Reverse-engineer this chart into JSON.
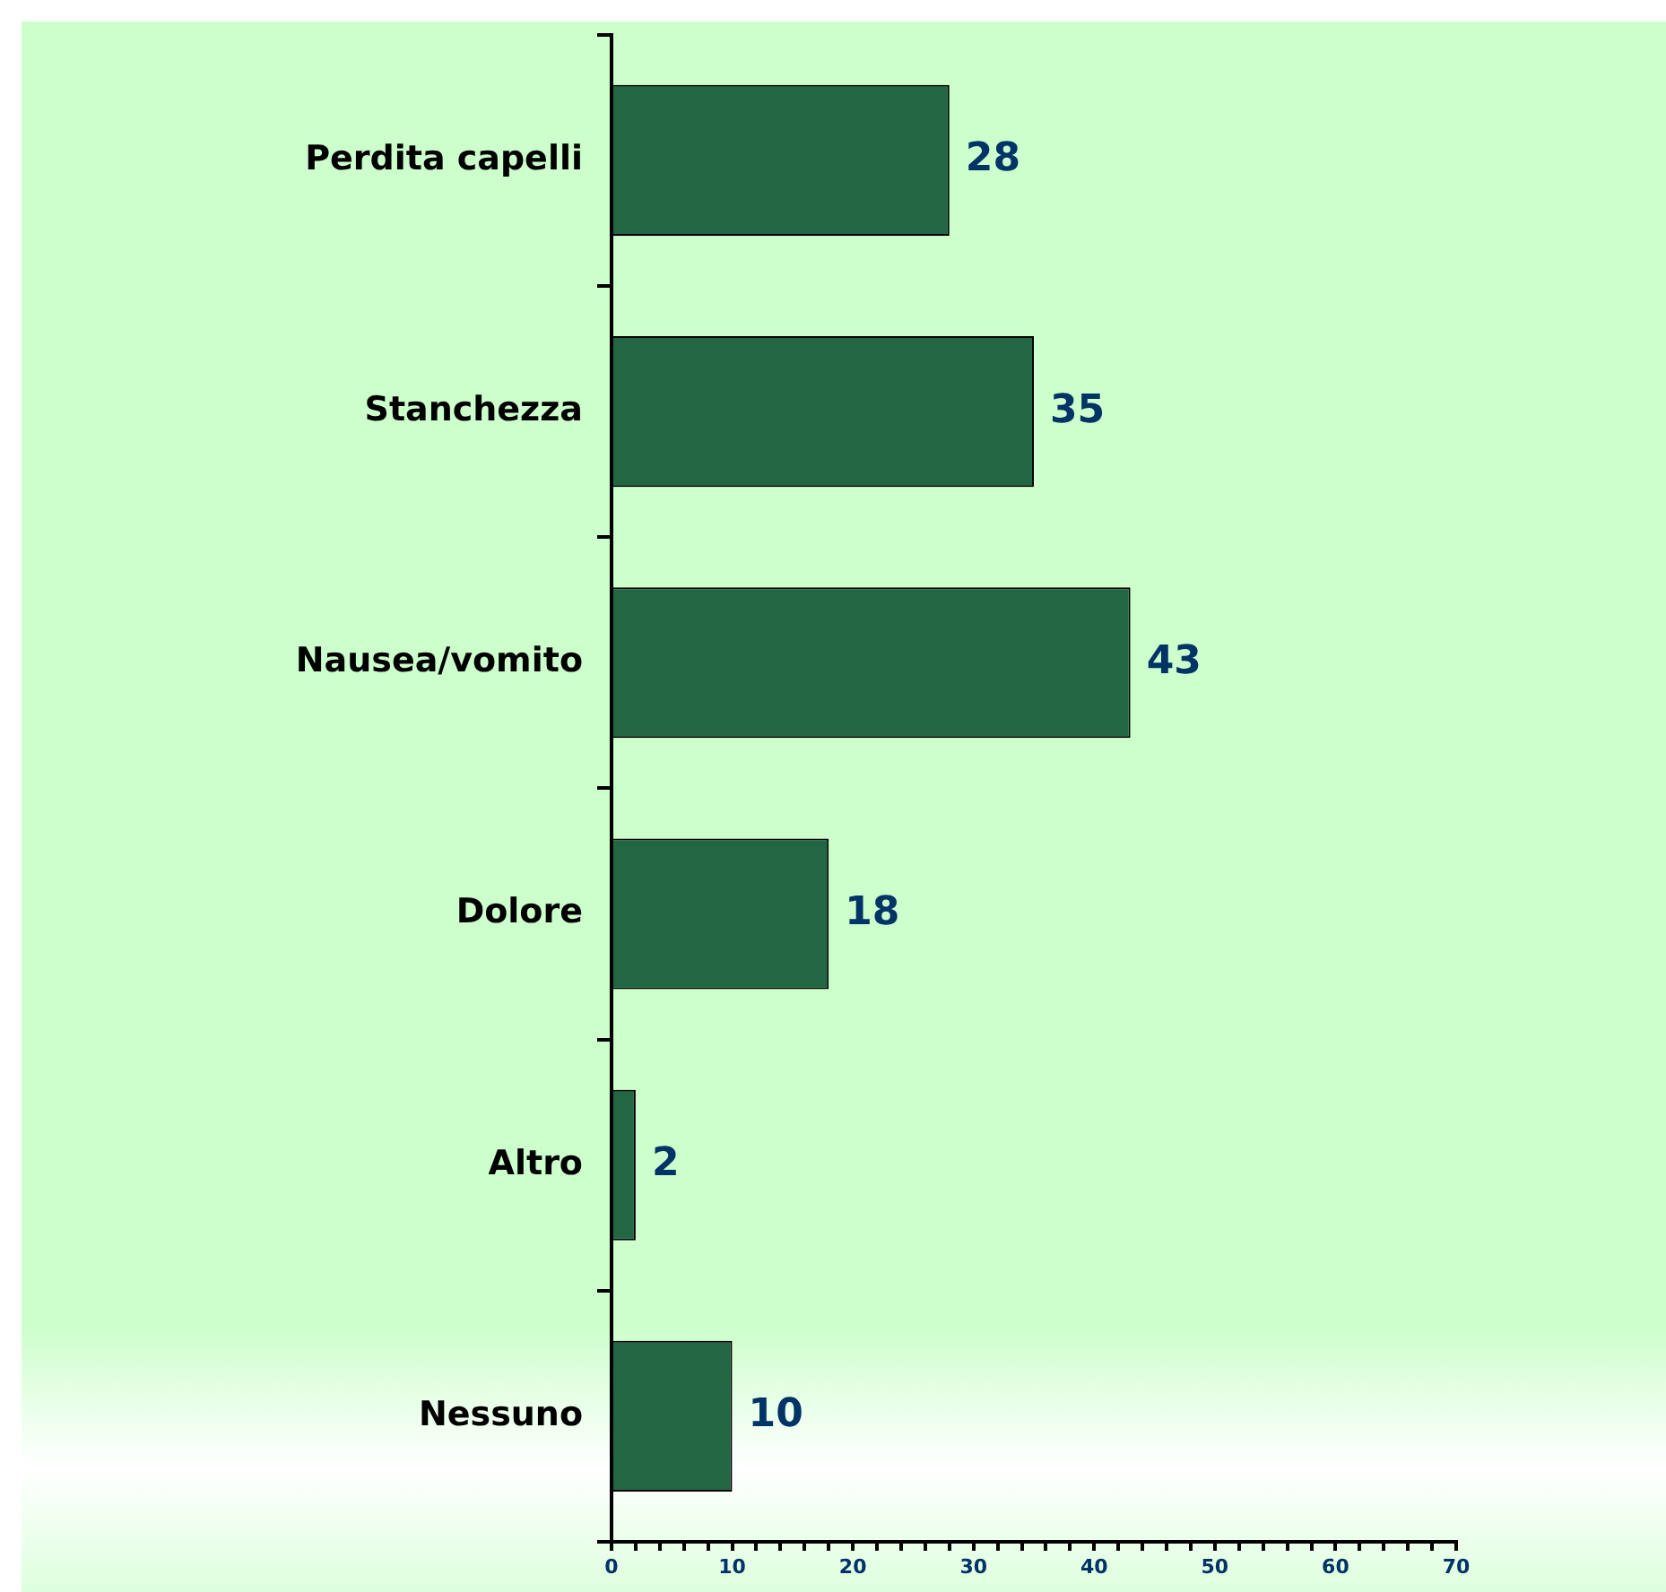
{
  "chart_data": {
    "type": "bar",
    "orientation": "horizontal",
    "categories": [
      "Perdita capelli",
      "Stanchezza",
      "Nausea/vomito",
      "Dolore",
      "Altro",
      "Nessuno"
    ],
    "values": [
      28,
      35,
      43,
      18,
      2,
      10
    ],
    "color": "#226644",
    "data_labels": true,
    "xlim": [
      0,
      70
    ],
    "xticks": [
      0,
      {
        "value": 2,
        "label": null
      },
      {
        "value": 4,
        "label": null
      },
      {
        "value": 6,
        "label": null
      },
      {
        "value": 8,
        "label": null
      },
      10,
      {
        "value": 12,
        "label": null
      },
      {
        "value": 14,
        "label": null
      },
      {
        "value": 16,
        "label": null
      },
      {
        "value": 18,
        "label": null
      },
      20,
      {
        "value": 22,
        "label": null
      },
      {
        "value": 24,
        "label": null
      },
      {
        "value": 26,
        "label": null
      },
      {
        "value": 28,
        "label": null
      },
      30,
      {
        "value": 32,
        "label": null
      },
      {
        "value": 34,
        "label": null
      },
      {
        "value": 36,
        "label": null
      },
      {
        "value": 38,
        "label": null
      },
      40,
      {
        "value": 42,
        "label": null
      },
      {
        "value": 44,
        "label": null
      },
      {
        "value": 46,
        "label": null
      },
      {
        "value": 48,
        "label": null
      },
      50,
      {
        "value": 52,
        "label": null
      },
      {
        "value": 54,
        "label": null
      },
      {
        "value": 56,
        "label": null
      },
      {
        "value": 58,
        "label": null
      },
      60,
      {
        "value": 62,
        "label": null
      },
      {
        "value": 64,
        "label": null
      },
      {
        "value": 66,
        "label": null
      },
      {
        "value": 68,
        "label": null
      },
      70
    ]
  }
}
